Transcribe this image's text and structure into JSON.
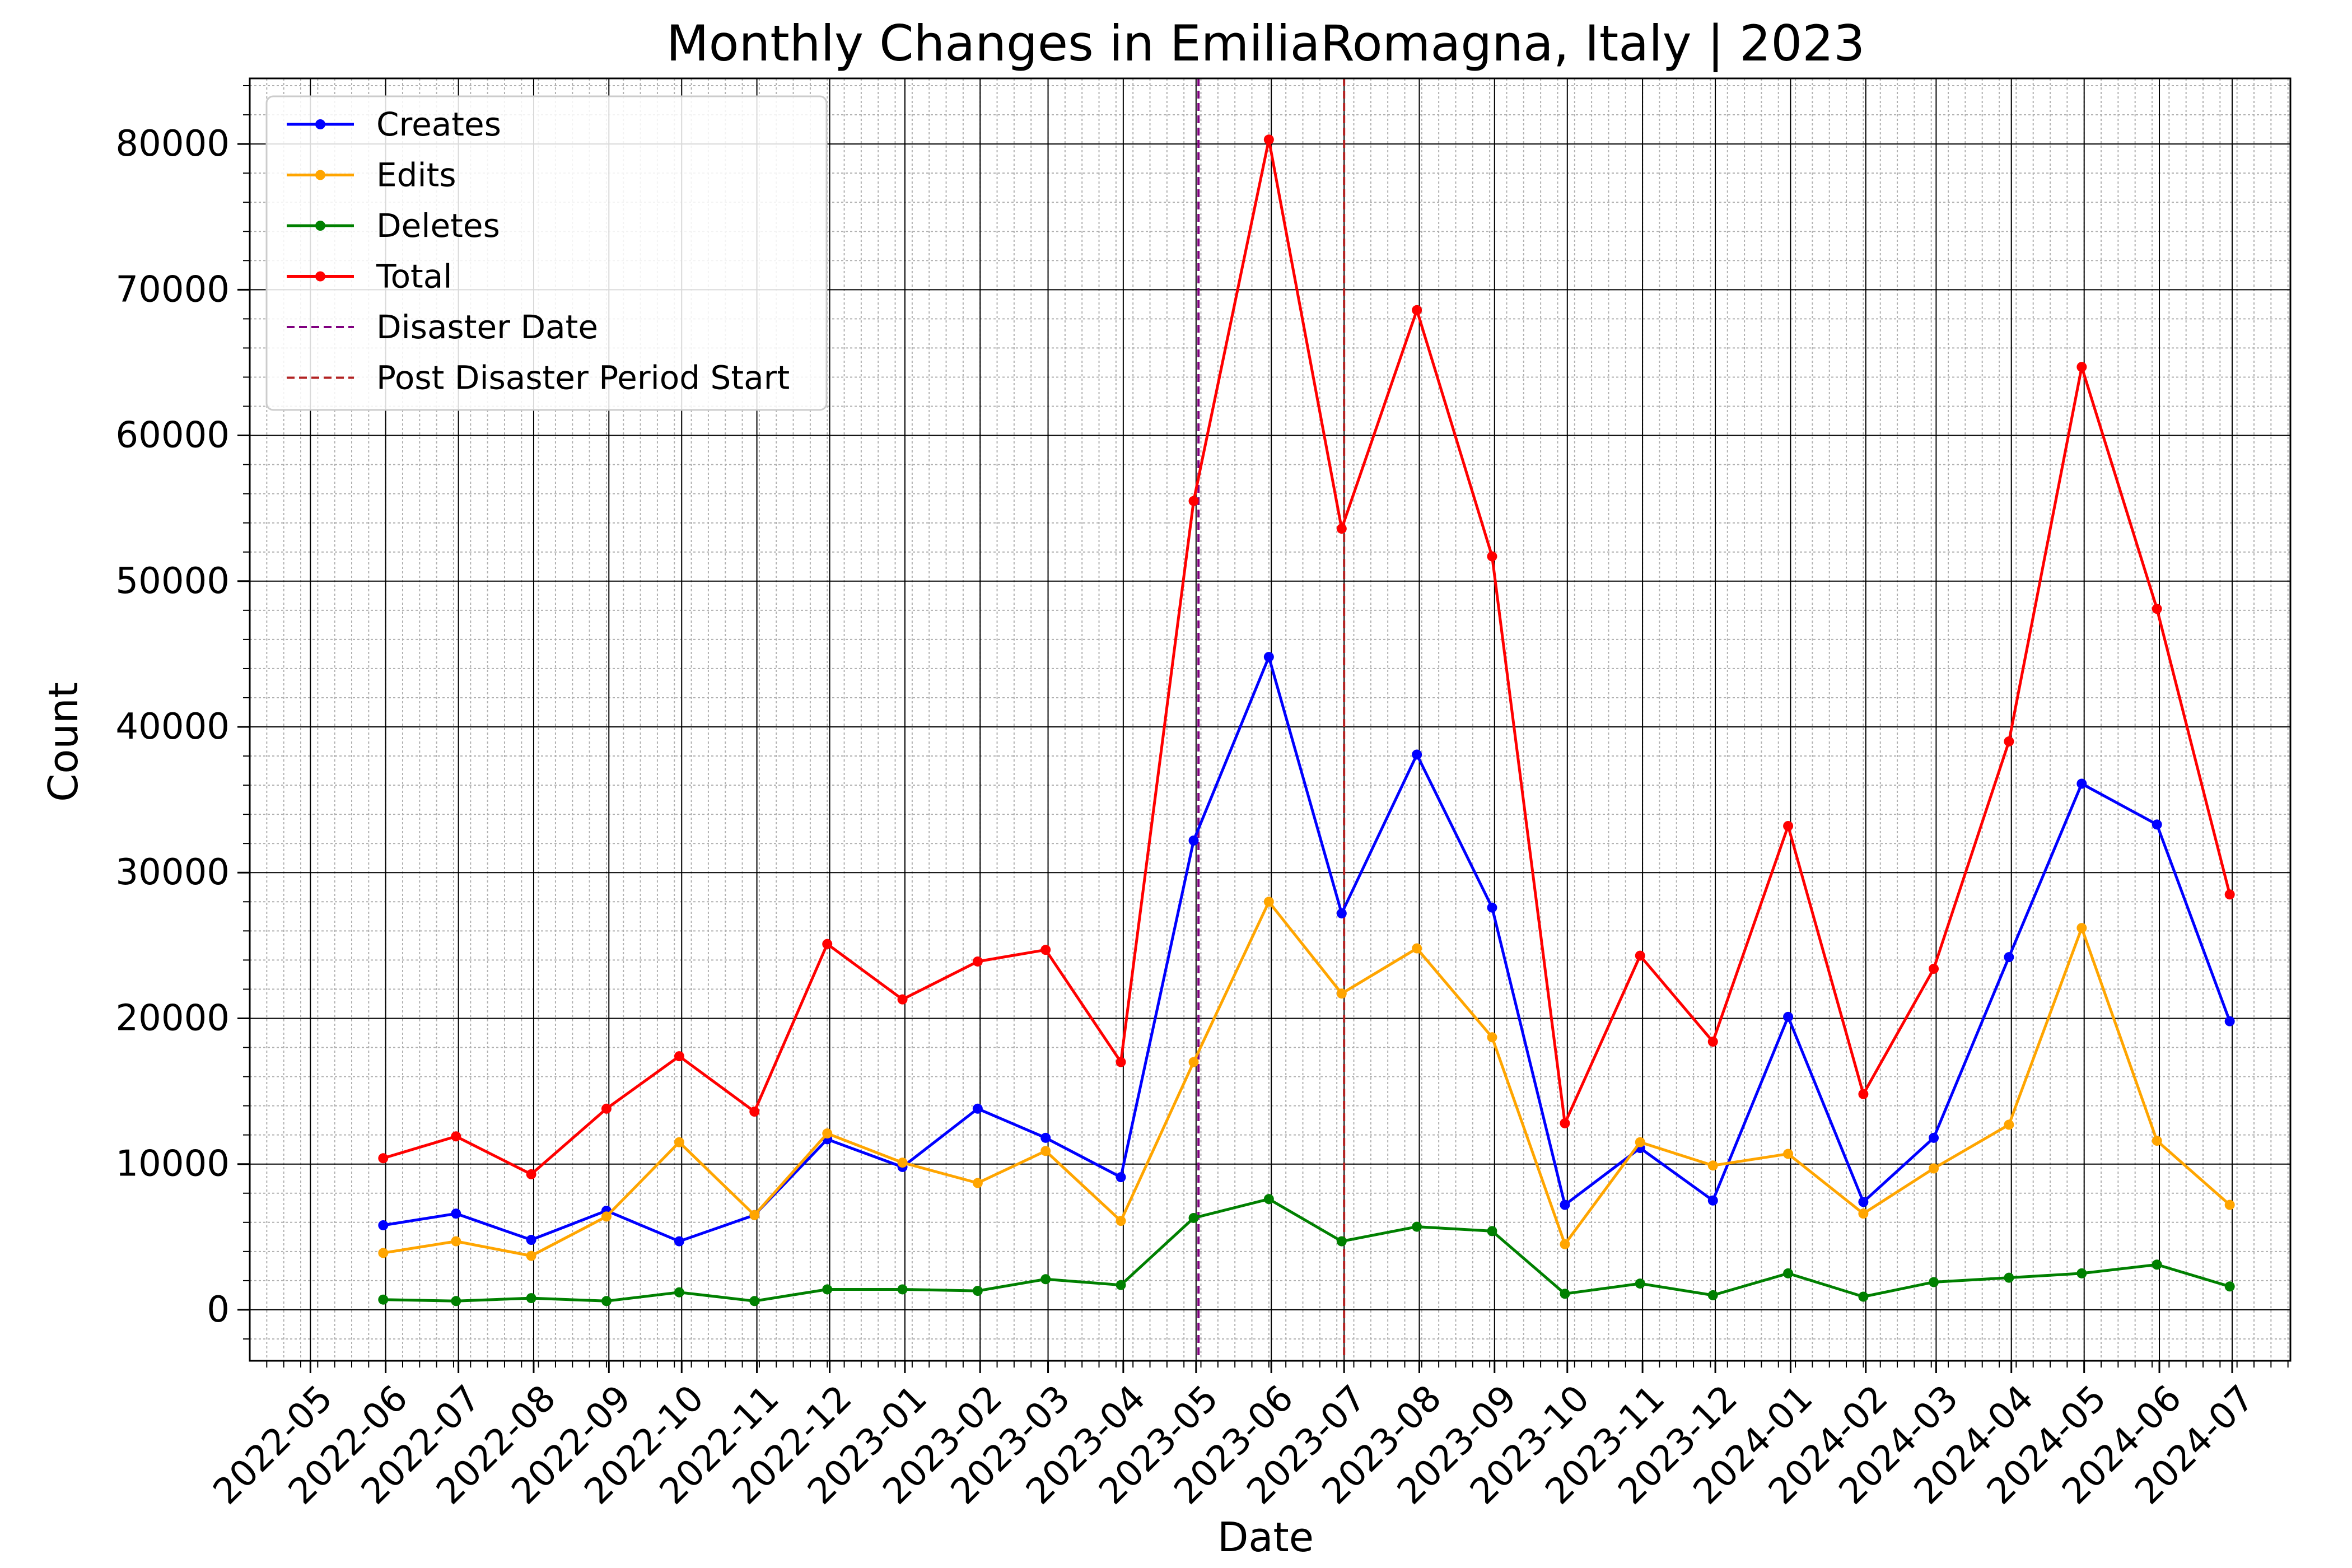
{
  "chart_data": {
    "type": "line",
    "title": "Monthly Changes in EmiliaRomagna, Italy | 2023",
    "xlabel": "Date",
    "ylabel": "Count",
    "x": [
      "2022-05-31",
      "2022-06-30",
      "2022-07-31",
      "2022-08-31",
      "2022-09-30",
      "2022-10-31",
      "2022-11-30",
      "2022-12-31",
      "2023-01-31",
      "2023-02-28",
      "2023-03-31",
      "2023-04-30",
      "2023-05-31",
      "2023-06-30",
      "2023-07-31",
      "2023-08-31",
      "2023-09-30",
      "2023-10-31",
      "2023-11-30",
      "2023-12-31",
      "2024-01-31",
      "2024-02-29",
      "2024-03-31",
      "2024-04-30",
      "2024-05-31",
      "2024-06-30"
    ],
    "xticks": [
      "2022-05",
      "2022-06",
      "2022-07",
      "2022-08",
      "2022-09",
      "2022-10",
      "2022-11",
      "2022-12",
      "2023-01",
      "2023-02",
      "2023-03",
      "2023-04",
      "2023-05",
      "2023-06",
      "2023-07",
      "2023-08",
      "2023-09",
      "2023-10",
      "2023-11",
      "2023-12",
      "2024-01",
      "2024-02",
      "2024-03",
      "2024-04",
      "2024-05",
      "2024-06",
      "2024-07"
    ],
    "xlim": [
      "2022-04-06",
      "2024-07-25"
    ],
    "yticks": [
      0,
      10000,
      20000,
      30000,
      40000,
      50000,
      60000,
      70000,
      80000
    ],
    "ylim": [
      -3500,
      84500
    ],
    "grid": true,
    "legend_position": "top-left",
    "series": [
      {
        "name": "Creates",
        "color": "#0000ff",
        "values": [
          5800,
          6600,
          4800,
          6800,
          4700,
          6500,
          11700,
          9800,
          13800,
          11800,
          9100,
          32200,
          44800,
          27200,
          38100,
          27600,
          7200,
          11100,
          7500,
          20100,
          7400,
          11800,
          24200,
          36100,
          33300,
          19800
        ]
      },
      {
        "name": "Edits",
        "color": "#ffa500",
        "values": [
          3900,
          4700,
          3700,
          6400,
          11500,
          6500,
          12100,
          10100,
          8700,
          10900,
          6100,
          17000,
          28000,
          21700,
          24800,
          18700,
          4500,
          11500,
          9900,
          10700,
          6600,
          9700,
          12700,
          26200,
          11600,
          7200
        ]
      },
      {
        "name": "Deletes",
        "color": "#008000",
        "values": [
          700,
          600,
          800,
          600,
          1200,
          600,
          1400,
          1400,
          1300,
          2100,
          1700,
          6300,
          7600,
          4700,
          5700,
          5400,
          1100,
          1800,
          1000,
          2500,
          900,
          1900,
          2200,
          2500,
          3100,
          1600
        ]
      },
      {
        "name": "Total",
        "color": "#ff0000",
        "values": [
          10400,
          11900,
          9300,
          13800,
          17400,
          13600,
          25100,
          21300,
          23900,
          24700,
          17000,
          55500,
          80300,
          53600,
          68600,
          51700,
          12800,
          24300,
          18400,
          33200,
          14800,
          23400,
          39000,
          64700,
          48100,
          28500
        ]
      }
    ],
    "vlines": [
      {
        "name": "Disaster Date",
        "x": "2023-05-02",
        "color": "#800080"
      },
      {
        "name": "Post Disaster Period Start",
        "x": "2023-07-01",
        "color": "#b22222"
      }
    ]
  }
}
